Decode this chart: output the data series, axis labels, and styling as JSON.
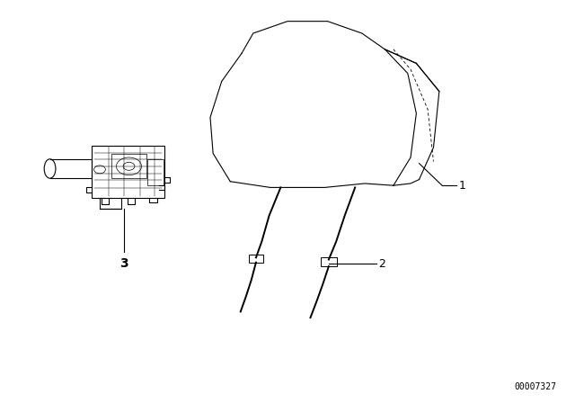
{
  "bg_color": "#ffffff",
  "line_color": "#000000",
  "fig_width": 6.4,
  "fig_height": 4.48,
  "dpi": 100,
  "watermark": "00007327"
}
